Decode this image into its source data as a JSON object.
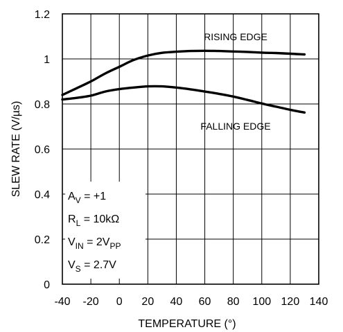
{
  "chart_data": {
    "type": "line",
    "xlabel": "TEMPERATURE (°)",
    "ylabel": "SLEW RATE (V/µs)",
    "xlim": [
      -40,
      140
    ],
    "ylim": [
      0,
      1.2
    ],
    "x_ticks": [
      -40,
      -20,
      0,
      20,
      40,
      60,
      80,
      100,
      120,
      140
    ],
    "x_tick_labels": [
      "-40",
      "-20",
      "0",
      "20",
      "40",
      "60",
      "80",
      "100",
      "120",
      "140"
    ],
    "y_ticks": [
      0,
      0.2,
      0.4,
      0.6,
      0.8,
      1.0,
      1.2
    ],
    "y_tick_labels": [
      "0",
      "0.2",
      "0.4",
      "0.6",
      "0.8",
      "1",
      "1.2"
    ],
    "grid": true,
    "series": [
      {
        "name": "RISING EDGE",
        "x": [
          -40,
          -30,
          -20,
          -10,
          0,
          10,
          20,
          30,
          40,
          50,
          60,
          70,
          80,
          90,
          100,
          110,
          120,
          130
        ],
        "y": [
          0.84,
          0.87,
          0.9,
          0.935,
          0.965,
          0.995,
          1.015,
          1.027,
          1.032,
          1.035,
          1.036,
          1.035,
          1.033,
          1.031,
          1.028,
          1.026,
          1.023,
          1.02
        ]
      },
      {
        "name": "FALLING EDGE",
        "x": [
          -40,
          -30,
          -20,
          -10,
          0,
          10,
          20,
          30,
          40,
          50,
          60,
          70,
          80,
          90,
          100,
          110,
          120,
          130
        ],
        "y": [
          0.82,
          0.827,
          0.837,
          0.855,
          0.866,
          0.873,
          0.878,
          0.878,
          0.873,
          0.865,
          0.855,
          0.845,
          0.833,
          0.818,
          0.802,
          0.788,
          0.774,
          0.762
        ]
      }
    ],
    "conditions": [
      {
        "main": "A",
        "sub": "V",
        "rest": " = +1"
      },
      {
        "main": "R",
        "sub": "L",
        "rest": " = 10kΩ"
      },
      {
        "main": "V",
        "sub": "IN",
        "rest": " = 2V",
        "sub2": "PP"
      },
      {
        "main": "V",
        "sub": "S",
        "rest": " = 2.7V"
      }
    ]
  }
}
